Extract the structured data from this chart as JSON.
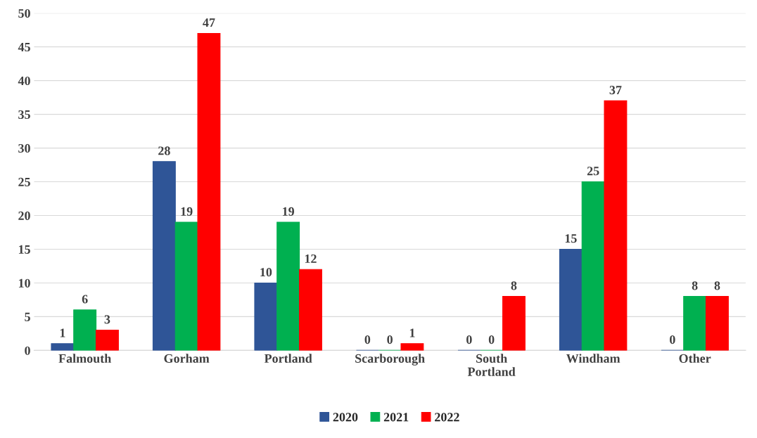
{
  "chart_data": {
    "type": "bar",
    "categories": [
      "Falmouth",
      "Gorham",
      "Portland",
      "Scarborough",
      "South\nPortland",
      "Windham",
      "Other"
    ],
    "series": [
      {
        "name": "2020",
        "color": "#2f5597",
        "values": [
          1,
          28,
          10,
          0,
          0,
          15,
          0
        ]
      },
      {
        "name": "2021",
        "color": "#00b050",
        "values": [
          6,
          19,
          19,
          0,
          0,
          25,
          8
        ]
      },
      {
        "name": "2022",
        "color": "#ff0000",
        "values": [
          3,
          47,
          12,
          1,
          8,
          37,
          8
        ]
      }
    ],
    "ylim": [
      0,
      50
    ],
    "yticks": [
      0,
      5,
      10,
      15,
      20,
      25,
      30,
      35,
      40,
      45,
      50
    ],
    "grid": "y",
    "legend": "bottom",
    "data_labels": true
  }
}
